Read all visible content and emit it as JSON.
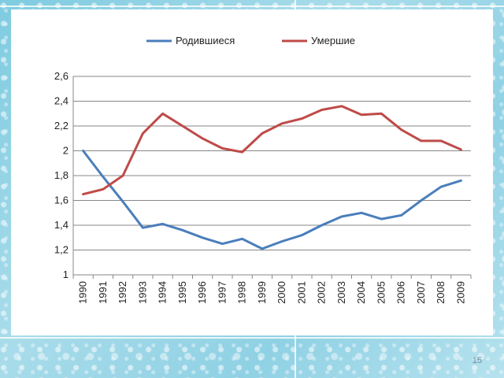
{
  "slide_number": "15",
  "chart_data": {
    "type": "line",
    "title": "",
    "xlabel": "",
    "ylabel": "",
    "x": [
      "1990",
      "1991",
      "1992",
      "1993",
      "1994",
      "1995",
      "1996",
      "1997",
      "1998",
      "1999",
      "2000",
      "2001",
      "2002",
      "2003",
      "2004",
      "2005",
      "2006",
      "2007",
      "2008",
      "2009"
    ],
    "ylim": [
      1,
      2.6
    ],
    "yticks": [
      1,
      1.2,
      1.4,
      1.6,
      1.8,
      2,
      2.2,
      2.4,
      2.6
    ],
    "ytick_labels": [
      "1",
      "1,2",
      "1,4",
      "1,6",
      "1,8",
      "2",
      "2,2",
      "2,4",
      "2,6"
    ],
    "grid": "horizontal",
    "legend_position": "top",
    "series": [
      {
        "name": "Родившиеся",
        "color": "#4a7ebb",
        "values": [
          2.0,
          1.79,
          1.59,
          1.38,
          1.41,
          1.36,
          1.3,
          1.25,
          1.29,
          1.21,
          1.27,
          1.32,
          1.4,
          1.47,
          1.5,
          1.45,
          1.48,
          1.6,
          1.71,
          1.76
        ]
      },
      {
        "name": "Умершие",
        "color": "#be4b48",
        "values": [
          1.65,
          1.69,
          1.8,
          2.14,
          2.3,
          2.2,
          2.1,
          2.02,
          1.99,
          2.14,
          2.22,
          2.26,
          2.33,
          2.36,
          2.29,
          2.3,
          2.17,
          2.08,
          2.08,
          2.01
        ]
      }
    ]
  }
}
